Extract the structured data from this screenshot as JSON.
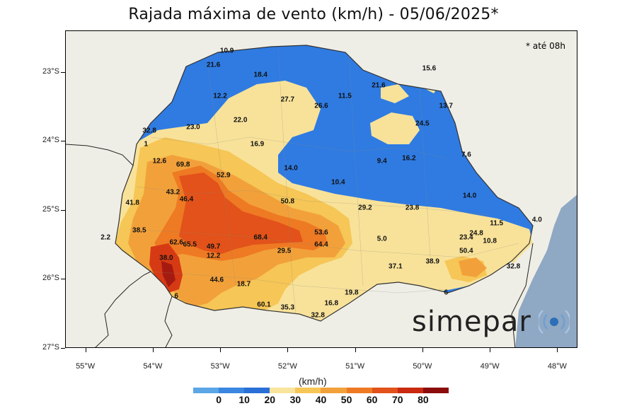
{
  "title": "Rajada máxima de vento (km/h) - 05/06/2025*",
  "note": "* até 08h",
  "brand": "simepar",
  "legend": {
    "unit": "(km/h)",
    "labels": [
      "0",
      "10",
      "20",
      "30",
      "40",
      "50",
      "60",
      "70",
      "80"
    ],
    "colors": [
      "#5aa6e6",
      "#3b86e0",
      "#2a6fd8",
      "#f8e49c",
      "#f6c656",
      "#f2a13a",
      "#ee7a23",
      "#e2521a",
      "#c92a10",
      "#8c0c0c"
    ]
  },
  "axes": {
    "lat_labels": [
      "23°S",
      "24°S",
      "25°S",
      "26°S",
      "27°S"
    ],
    "lon_labels": [
      "55°W",
      "54°W",
      "53°W",
      "52°W",
      "51°W",
      "50°W",
      "49°W",
      "48°W"
    ]
  },
  "colors": {
    "ocean": "#8fa8c4",
    "land": "#efeee6",
    "low": "#2f7be2",
    "mid": "#f8e29a",
    "high": "#ee8a2b",
    "peak": "#d63a14"
  },
  "chart_data": {
    "type": "map",
    "title": "Rajada máxima de vento (km/h) - 05/06/2025*",
    "region_lon_range": [
      -55.3,
      -47.7
    ],
    "region_lat_range": [
      -22.4,
      -27.0
    ],
    "stations": [
      {
        "value": "10.9",
        "lon": -52.9,
        "lat": -22.7
      },
      {
        "value": "21.6",
        "lon": -53.1,
        "lat": -22.9
      },
      {
        "value": "18.4",
        "lon": -52.4,
        "lat": -23.05
      },
      {
        "value": "15.6",
        "lon": -49.9,
        "lat": -22.95
      },
      {
        "value": "12.2",
        "lon": -53.0,
        "lat": -23.35
      },
      {
        "value": "27.7",
        "lon": -52.0,
        "lat": -23.4
      },
      {
        "value": "26.6",
        "lon": -51.5,
        "lat": -23.5
      },
      {
        "value": "11.5",
        "lon": -51.15,
        "lat": -23.35
      },
      {
        "value": "21.6",
        "lon": -50.65,
        "lat": -23.2
      },
      {
        "value": "13.7",
        "lon": -49.65,
        "lat": -23.5
      },
      {
        "value": "22.0",
        "lon": -52.7,
        "lat": -23.7
      },
      {
        "value": "24.5",
        "lon": -50.0,
        "lat": -23.75
      },
      {
        "value": "32.8",
        "lon": -54.05,
        "lat": -23.85
      },
      {
        "value": "23.0",
        "lon": -53.4,
        "lat": -23.8
      },
      {
        "value": "16.9",
        "lon": -52.45,
        "lat": -24.05
      },
      {
        "value": "7.6",
        "lon": -49.35,
        "lat": -24.2
      },
      {
        "value": "12.6",
        "lon": -53.9,
        "lat": -24.3
      },
      {
        "value": "69.8",
        "lon": -53.55,
        "lat": -24.35
      },
      {
        "value": "9.4",
        "lon": -50.6,
        "lat": -24.3
      },
      {
        "value": "16.2",
        "lon": -50.2,
        "lat": -24.25
      },
      {
        "value": "14.0",
        "lon": -51.95,
        "lat": -24.4
      },
      {
        "value": "52.9",
        "lon": -52.95,
        "lat": -24.5
      },
      {
        "value": "10.4",
        "lon": -51.25,
        "lat": -24.6
      },
      {
        "value": "43.2",
        "lon": -53.7,
        "lat": -24.75
      },
      {
        "value": "46.4",
        "lon": -53.5,
        "lat": -24.85
      },
      {
        "value": "14.0",
        "lon": -49.3,
        "lat": -24.8
      },
      {
        "value": "41.8",
        "lon": -54.3,
        "lat": -24.9
      },
      {
        "value": "50.8",
        "lon": -52.0,
        "lat": -24.88
      },
      {
        "value": "29.2",
        "lon": -50.85,
        "lat": -24.97
      },
      {
        "value": "23.8",
        "lon": -50.15,
        "lat": -24.97
      },
      {
        "value": "11.5",
        "lon": -48.9,
        "lat": -25.2
      },
      {
        "value": "4.0",
        "lon": -48.3,
        "lat": -25.15
      },
      {
        "value": "38.5",
        "lon": -54.2,
        "lat": -25.3
      },
      {
        "value": "2.2",
        "lon": -54.7,
        "lat": -25.4
      },
      {
        "value": "68.4",
        "lon": -52.4,
        "lat": -25.4
      },
      {
        "value": "53.6",
        "lon": -51.5,
        "lat": -25.33
      },
      {
        "value": "24.8",
        "lon": -49.2,
        "lat": -25.34
      },
      {
        "value": "5.0",
        "lon": -50.6,
        "lat": -25.42
      },
      {
        "value": "62.6",
        "lon": -53.65,
        "lat": -25.47
      },
      {
        "value": "65.5",
        "lon": -53.45,
        "lat": -25.5
      },
      {
        "value": "49.7",
        "lon": -53.1,
        "lat": -25.53
      },
      {
        "value": "64.4",
        "lon": -51.5,
        "lat": -25.5
      },
      {
        "value": "23.4",
        "lon": -49.35,
        "lat": -25.4
      },
      {
        "value": "10.8",
        "lon": -49.0,
        "lat": -25.45
      },
      {
        "value": "29.5",
        "lon": -52.05,
        "lat": -25.6
      },
      {
        "value": "50.4",
        "lon": -49.35,
        "lat": -25.6
      },
      {
        "value": "12.2",
        "lon": -53.1,
        "lat": -25.67
      },
      {
        "value": "38.0",
        "lon": -53.8,
        "lat": -25.7
      },
      {
        "value": "38.9",
        "lon": -49.85,
        "lat": -25.75
      },
      {
        "value": "37.1",
        "lon": -50.4,
        "lat": -25.82
      },
      {
        "value": "32.8",
        "lon": -48.65,
        "lat": -25.82
      },
      {
        "value": "44.6",
        "lon": -53.05,
        "lat": -26.02
      },
      {
        "value": "18.7",
        "lon": -52.65,
        "lat": -26.08
      },
      {
        "value": "19.8",
        "lon": -51.05,
        "lat": -26.2
      },
      {
        "value": "6",
        "lon": -49.65,
        "lat": -26.2
      },
      {
        "value": "6",
        "lon": -53.65,
        "lat": -26.25
      },
      {
        "value": "16.8",
        "lon": -51.35,
        "lat": -26.35
      },
      {
        "value": "60.1",
        "lon": -52.35,
        "lat": -26.37
      },
      {
        "value": "35.3",
        "lon": -52.0,
        "lat": -26.42
      },
      {
        "value": "32.8",
        "lon": -51.55,
        "lat": -26.53
      },
      {
        "value": "1",
        "lon": -54.1,
        "lat": -24.05
      }
    ]
  }
}
